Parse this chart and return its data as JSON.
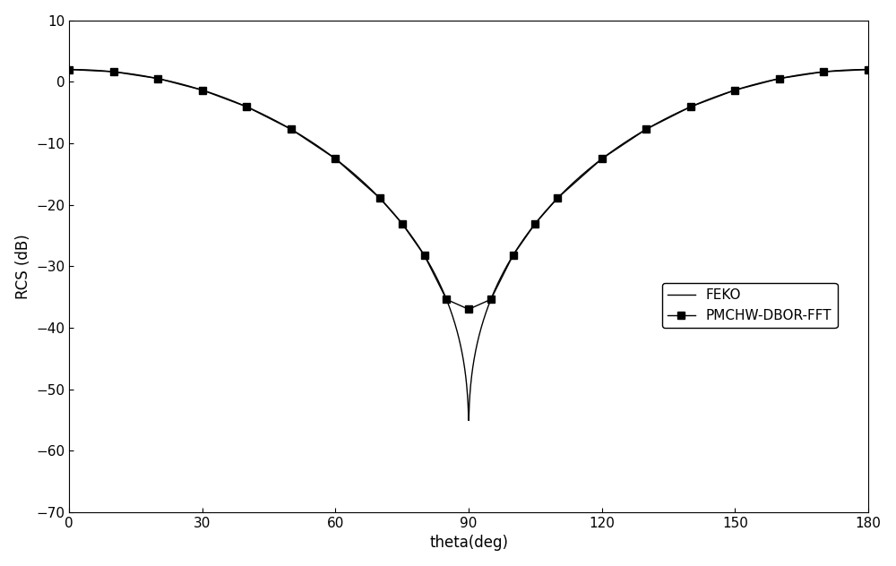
{
  "title": "",
  "xlabel": "theta(deg)",
  "ylabel": "RCS (dB)",
  "xlim": [
    0,
    180
  ],
  "ylim": [
    -70,
    10
  ],
  "xticks": [
    0,
    30,
    60,
    90,
    120,
    150,
    180
  ],
  "yticks": [
    -70,
    -60,
    -50,
    -40,
    -30,
    -20,
    -10,
    0,
    10
  ],
  "line_color": "#000000",
  "marker_color": "#000000",
  "background_color": "#ffffff",
  "legend_labels": [
    "FEKO",
    "PMCHW-DBOR-FFT"
  ],
  "scatter_points_theta": [
    0,
    10,
    20,
    30,
    40,
    50,
    60,
    70,
    75,
    80,
    85,
    90,
    95,
    100,
    105,
    110,
    120,
    130,
    140,
    150,
    160,
    170,
    180
  ],
  "figsize": [
    10.0,
    6.32
  ]
}
